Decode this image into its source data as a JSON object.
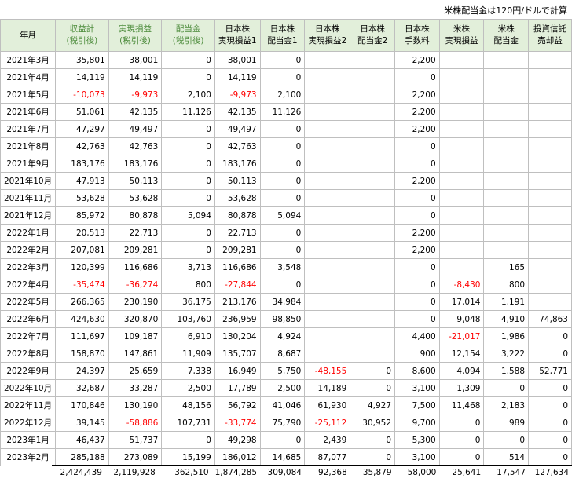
{
  "note": "米株配当金は120円/ドルで計算",
  "columns": [
    {
      "l1": "年月",
      "l2": "",
      "green": false
    },
    {
      "l1": "収益計",
      "l2": "(税引後)",
      "green": true
    },
    {
      "l1": "実現損益",
      "l2": "(税引後)",
      "green": true
    },
    {
      "l1": "配当金",
      "l2": "(税引後)",
      "green": true
    },
    {
      "l1": "日本株",
      "l2": "実現損益1",
      "green": false
    },
    {
      "l1": "日本株",
      "l2": "配当金1",
      "green": false
    },
    {
      "l1": "日本株",
      "l2": "実現損益2",
      "green": false
    },
    {
      "l1": "日本株",
      "l2": "配当金2",
      "green": false
    },
    {
      "l1": "日本株",
      "l2": "手数料",
      "green": false
    },
    {
      "l1": "米株",
      "l2": "実現損益",
      "green": false
    },
    {
      "l1": "米株",
      "l2": "配当金",
      "green": false
    },
    {
      "l1": "投資信託",
      "l2": "売却益",
      "green": false
    }
  ],
  "rows": [
    [
      "2021年3月",
      "35,801",
      "38,001",
      "0",
      "38,001",
      "0",
      "",
      "",
      "2,200",
      "",
      "",
      ""
    ],
    [
      "2021年4月",
      "14,119",
      "14,119",
      "0",
      "14,119",
      "0",
      "",
      "",
      "0",
      "",
      "",
      ""
    ],
    [
      "2021年5月",
      "-10,073",
      "-9,973",
      "2,100",
      "-9,973",
      "2,100",
      "",
      "",
      "2,200",
      "",
      "",
      ""
    ],
    [
      "2021年6月",
      "51,061",
      "42,135",
      "11,126",
      "42,135",
      "11,126",
      "",
      "",
      "2,200",
      "",
      "",
      ""
    ],
    [
      "2021年7月",
      "47,297",
      "49,497",
      "0",
      "49,497",
      "0",
      "",
      "",
      "2,200",
      "",
      "",
      ""
    ],
    [
      "2021年8月",
      "42,763",
      "42,763",
      "0",
      "42,763",
      "0",
      "",
      "",
      "0",
      "",
      "",
      ""
    ],
    [
      "2021年9月",
      "183,176",
      "183,176",
      "0",
      "183,176",
      "0",
      "",
      "",
      "0",
      "",
      "",
      ""
    ],
    [
      "2021年10月",
      "47,913",
      "50,113",
      "0",
      "50,113",
      "0",
      "",
      "",
      "2,200",
      "",
      "",
      ""
    ],
    [
      "2021年11月",
      "53,628",
      "53,628",
      "0",
      "53,628",
      "0",
      "",
      "",
      "0",
      "",
      "",
      ""
    ],
    [
      "2021年12月",
      "85,972",
      "80,878",
      "5,094",
      "80,878",
      "5,094",
      "",
      "",
      "0",
      "",
      "",
      ""
    ],
    [
      "2022年1月",
      "20,513",
      "22,713",
      "0",
      "22,713",
      "0",
      "",
      "",
      "2,200",
      "",
      "",
      ""
    ],
    [
      "2022年2月",
      "207,081",
      "209,281",
      "0",
      "209,281",
      "0",
      "",
      "",
      "2,200",
      "",
      "",
      ""
    ],
    [
      "2022年3月",
      "120,399",
      "116,686",
      "3,713",
      "116,686",
      "3,548",
      "",
      "",
      "0",
      "",
      "165",
      ""
    ],
    [
      "2022年4月",
      "-35,474",
      "-36,274",
      "800",
      "-27,844",
      "0",
      "",
      "",
      "0",
      "-8,430",
      "800",
      ""
    ],
    [
      "2022年5月",
      "266,365",
      "230,190",
      "36,175",
      "213,176",
      "34,984",
      "",
      "",
      "0",
      "17,014",
      "1,191",
      ""
    ],
    [
      "2022年6月",
      "424,630",
      "320,870",
      "103,760",
      "236,959",
      "98,850",
      "",
      "",
      "0",
      "9,048",
      "4,910",
      "74,863"
    ],
    [
      "2022年7月",
      "111,697",
      "109,187",
      "6,910",
      "130,204",
      "4,924",
      "",
      "",
      "4,400",
      "-21,017",
      "1,986",
      "0"
    ],
    [
      "2022年8月",
      "158,870",
      "147,861",
      "11,909",
      "135,707",
      "8,687",
      "",
      "",
      "900",
      "12,154",
      "3,222",
      "0"
    ],
    [
      "2022年9月",
      "24,397",
      "25,659",
      "7,338",
      "16,949",
      "5,750",
      "-48,155",
      "0",
      "8,600",
      "4,094",
      "1,588",
      "52,771"
    ],
    [
      "2022年10月",
      "32,687",
      "33,287",
      "2,500",
      "17,789",
      "2,500",
      "14,189",
      "0",
      "3,100",
      "1,309",
      "0",
      "0"
    ],
    [
      "2022年11月",
      "170,846",
      "130,190",
      "48,156",
      "56,792",
      "41,046",
      "61,930",
      "4,927",
      "7,500",
      "11,468",
      "2,183",
      "0"
    ],
    [
      "2022年12月",
      "39,145",
      "-58,886",
      "107,731",
      "-33,774",
      "75,790",
      "-25,112",
      "30,952",
      "9,700",
      "0",
      "989",
      "0"
    ],
    [
      "2023年1月",
      "46,437",
      "51,737",
      "0",
      "49,298",
      "0",
      "2,439",
      "0",
      "5,300",
      "0",
      "0",
      "0"
    ],
    [
      "2023年2月",
      "285,188",
      "273,089",
      "15,199",
      "186,012",
      "14,685",
      "87,077",
      "0",
      "3,100",
      "0",
      "514",
      "0"
    ]
  ],
  "totals": [
    "",
    "2,424,439",
    "2,119,928",
    "362,510",
    "1,874,285",
    "309,084",
    "92,368",
    "35,879",
    "58,000",
    "25,641",
    "17,547",
    "127,634"
  ]
}
